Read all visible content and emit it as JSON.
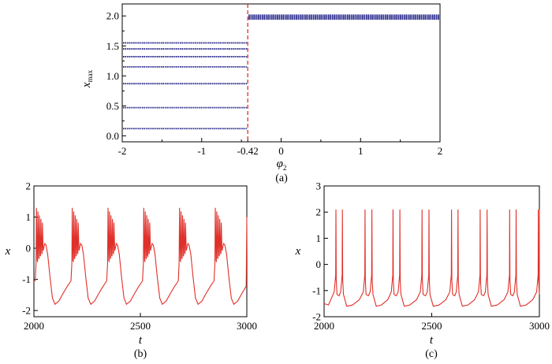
{
  "chart_data": [
    {
      "panel": "(a)",
      "type": "scatter",
      "xlabel": "φ",
      "xlabel_sub": "2",
      "ylabel": "x",
      "ylabel_sub": "max",
      "xlim": [
        -2,
        2
      ],
      "ylim": [
        -0.1,
        2.2
      ],
      "xticks": [
        -2,
        -1,
        -0.42,
        0,
        1,
        2
      ],
      "xtick_labels": [
        "-2",
        "-1",
        "-0.42",
        "0",
        "1",
        "2"
      ],
      "yticks": [
        0.0,
        0.5,
        1.0,
        1.5,
        2.0
      ],
      "ytick_labels": [
        "0.0",
        "0.5",
        "1.0",
        "1.5",
        "2.0"
      ],
      "dashed_vline": -0.42,
      "series": [
        {
          "x_range": [
            -2,
            -0.42
          ],
          "y_levels": [
            0.12,
            0.47,
            0.87,
            1.15,
            1.32,
            1.45,
            1.55
          ]
        },
        {
          "x_range": [
            -0.42,
            2
          ],
          "y_levels": [
            1.95,
            1.97,
            1.99,
            2.01
          ]
        }
      ],
      "colors": {
        "points": "#2a2a8c",
        "vline": "#e0302a"
      }
    },
    {
      "panel": "(b)",
      "type": "line",
      "xlabel": "t",
      "ylabel": "x",
      "xlim": [
        2000,
        3000
      ],
      "ylim": [
        -2.2,
        2
      ],
      "xticks": [
        2000,
        2500,
        3000
      ],
      "xtick_labels": [
        "2000",
        "2500",
        "3000"
      ],
      "yticks": [
        -2,
        -1,
        0,
        1,
        2
      ],
      "ytick_labels": [
        "-2",
        "-1",
        "0",
        "1",
        "2"
      ],
      "period": 168,
      "first_burst": 2012,
      "spikes_per_burst": 5,
      "spike_peak": 1.3,
      "spike_trough": -0.5,
      "plateau": 0.15,
      "drop_min": -1.8,
      "recovery_level": -1.05,
      "color": "#e0302a"
    },
    {
      "panel": "(c)",
      "type": "line",
      "xlabel": "t",
      "ylabel": "x",
      "xlim": [
        2000,
        3000
      ],
      "ylim": [
        -2,
        3
      ],
      "xticks": [
        2000,
        2500,
        3000
      ],
      "xtick_labels": [
        "2000",
        "2500",
        "3000"
      ],
      "yticks": [
        -2,
        -1,
        0,
        1,
        2,
        3
      ],
      "ytick_labels": [
        "-2",
        "-1",
        "0",
        "1",
        "2",
        "3"
      ],
      "spike_times": [
        2055,
        2085,
        2190,
        2222,
        2320,
        2352,
        2455,
        2487,
        2592,
        2622,
        2725,
        2757,
        2862,
        2892,
        2995
      ],
      "spike_peak": 2.1,
      "baseline_min": -1.6,
      "baseline_rise": -1.05,
      "color": "#e0302a"
    }
  ]
}
